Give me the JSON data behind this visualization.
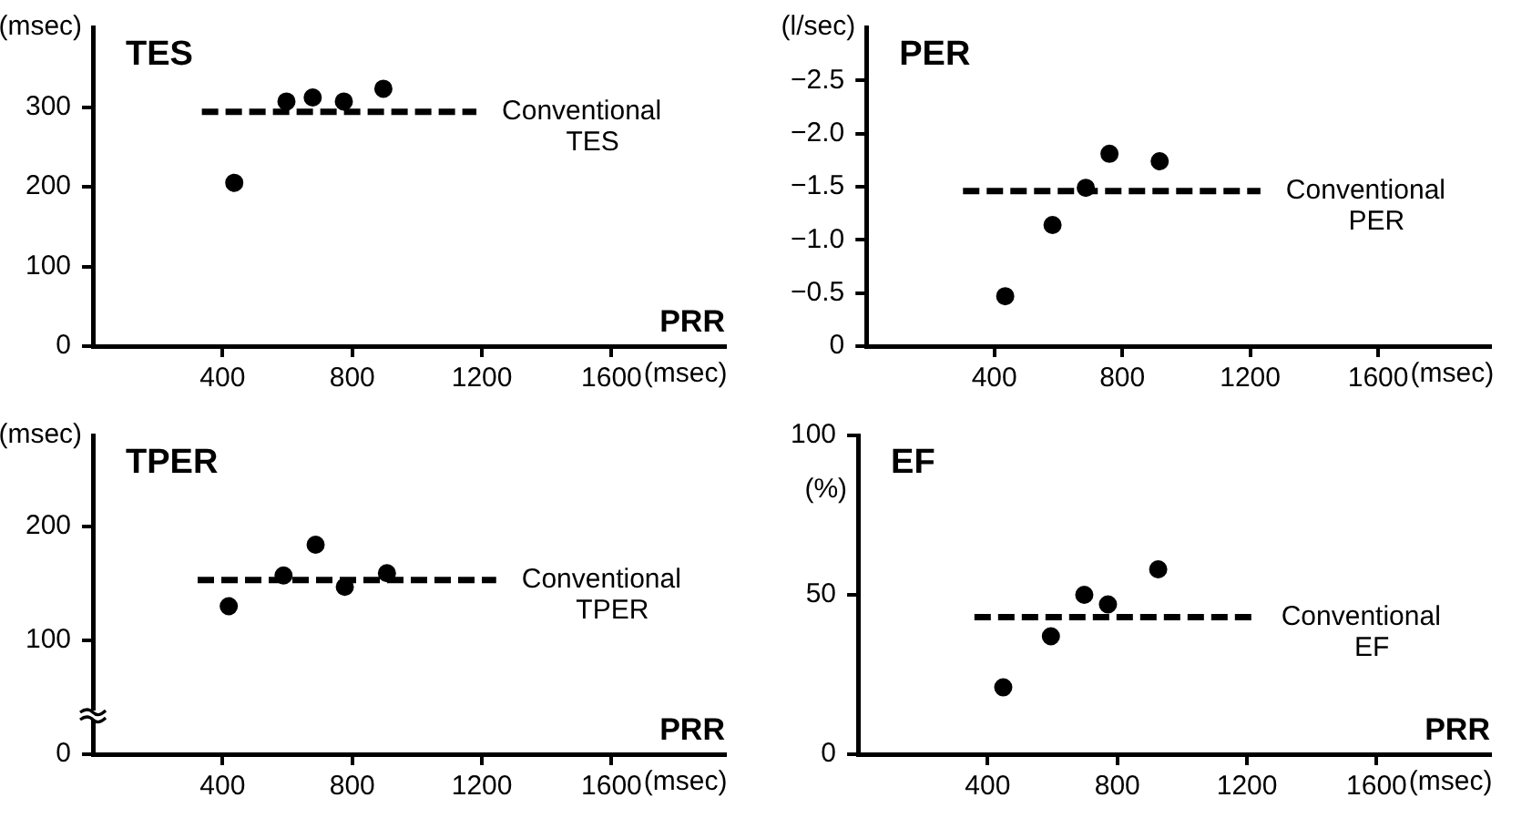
{
  "chart_data": [
    {
      "type": "scatter",
      "title": "TES",
      "ylabel": "(msec)",
      "xlabel": "PRR",
      "annotations": [
        "(msec)"
      ],
      "xlim": [
        0,
        1950
      ],
      "xticks": [
        400,
        800,
        1200,
        1600
      ],
      "ylim": [
        0,
        400
      ],
      "yticks": [
        0,
        100,
        200,
        300
      ],
      "legend": false,
      "marker": "circle",
      "series": [
        {
          "color": "#000000",
          "x": [
            436,
            597,
            678,
            774,
            896
          ],
          "values": [
            205,
            307,
            312,
            307,
            323
          ]
        },
        {
          "type": "line",
          "name": "Conventional TES",
          "color": "#000000",
          "line_style": "dashed",
          "marker": "none",
          "x": [
            336,
            1183
          ],
          "values": [
            294,
            294
          ]
        }
      ]
    },
    {
      "type": "scatter",
      "title": "PER",
      "ylabel": "(l/sec)",
      "annotations": [
        "(msec)"
      ],
      "xlim": [
        0,
        1950
      ],
      "xticks": [
        400,
        800,
        1200,
        1600
      ],
      "ylim": [
        0,
        -3
      ],
      "yticks": [
        0,
        {
          "value": -0.5,
          "label": "−0.5"
        },
        {
          "value": -1,
          "label": "−1.0"
        },
        {
          "value": -1.5,
          "label": "−1.5"
        },
        {
          "value": -2,
          "label": "−2.0"
        },
        {
          "value": -2.5,
          "label": "−2.5"
        }
      ],
      "legend": false,
      "marker": "circle",
      "series": [
        {
          "color": "#000000",
          "x": [
            434,
            582,
            686,
            760,
            917
          ],
          "values": [
            -0.47,
            -1.14,
            -1.49,
            -1.81,
            -1.74
          ]
        },
        {
          "type": "line",
          "name": "Conventional PER",
          "color": "#000000",
          "line_style": "dashed",
          "marker": "none",
          "x": [
            302,
            1232
          ],
          "values": [
            -1.46,
            -1.46
          ]
        }
      ]
    },
    {
      "type": "scatter",
      "title": "TPER",
      "ylabel": "(msec)",
      "xlabel": "PRR",
      "annotations": [
        "(msec)"
      ],
      "xlim": [
        0,
        1950
      ],
      "xticks": [
        400,
        800,
        1200,
        1600
      ],
      "ylim": [
        0,
        280
      ],
      "yticks": [
        0,
        100,
        200
      ],
      "legend": false,
      "marker": "circle",
      "series": [
        {
          "color": "#000000",
          "x": [
            419,
            588,
            687,
            777,
            907
          ],
          "values": [
            130,
            157,
            184,
            147,
            159
          ]
        },
        {
          "type": "line",
          "name": "Conventional TPER",
          "color": "#000000",
          "line_style": "dashed",
          "marker": "none",
          "x": [
            323,
            1244
          ],
          "values": [
            153,
            153
          ]
        }
      ]
    },
    {
      "type": "scatter",
      "title": "EF",
      "ylabel": "(%)",
      "xlabel": "PRR",
      "annotations": [
        "(msec)"
      ],
      "xlim": [
        0,
        1950
      ],
      "xticks": [
        400,
        800,
        1200,
        1600
      ],
      "ylim": [
        0,
        100
      ],
      "yticks": [
        0,
        50,
        100
      ],
      "legend": false,
      "marker": "circle",
      "series": [
        {
          "color": "#000000",
          "x": [
            448,
            595,
            698,
            771,
            926
          ],
          "values": [
            21,
            37,
            50,
            47,
            58
          ]
        },
        {
          "type": "line",
          "name": "Conventional EF",
          "color": "#000000",
          "line_style": "dashed",
          "marker": "none",
          "x": [
            359,
            1227
          ],
          "values": [
            43,
            43
          ]
        }
      ]
    }
  ]
}
